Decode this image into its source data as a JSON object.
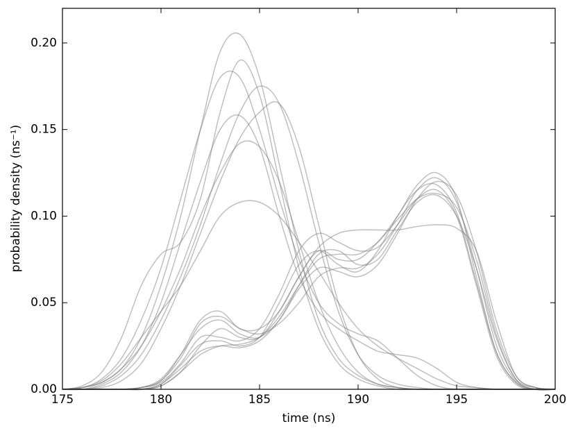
{
  "chart_data": {
    "type": "line",
    "x_label": "time (ns)",
    "y_label": "probability density (ns⁻¹)",
    "x": [
      175,
      176,
      177,
      178,
      179,
      180,
      181,
      182,
      183,
      184,
      185,
      186,
      187,
      188,
      189,
      190,
      191,
      192,
      193,
      194,
      195,
      196,
      197,
      198,
      199,
      200
    ],
    "xlim": [
      175,
      200
    ],
    "xticks": [
      175,
      180,
      185,
      190,
      195,
      200
    ],
    "ylim": [
      0,
      0.22
    ],
    "yticks": [
      {
        "value": 0,
        "label": "0.00"
      },
      0.05,
      {
        "value": 0.1,
        "label": "0.10"
      },
      0.15,
      {
        "value": 0.2,
        "label": "0.20"
      }
    ],
    "line_alpha": 0.5,
    "series": [
      {
        "color": "#808080",
        "values": [
          0,
          0.001,
          0.004,
          0.012,
          0.03,
          0.06,
          0.1,
          0.15,
          0.195,
          0.205,
          0.18,
          0.13,
          0.08,
          0.04,
          0.018,
          0.008,
          0.003,
          0.001,
          0,
          0,
          0,
          0,
          0,
          0,
          0,
          0
        ]
      },
      {
        "color": "#808080",
        "values": [
          0,
          0,
          0.002,
          0.008,
          0.02,
          0.04,
          0.065,
          0.095,
          0.13,
          0.16,
          0.175,
          0.165,
          0.13,
          0.085,
          0.045,
          0.02,
          0.008,
          0.003,
          0.001,
          0,
          0,
          0,
          0,
          0,
          0,
          0
        ]
      },
      {
        "color": "#808080",
        "values": [
          0,
          0.002,
          0.01,
          0.03,
          0.06,
          0.078,
          0.085,
          0.11,
          0.16,
          0.19,
          0.17,
          0.12,
          0.07,
          0.035,
          0.015,
          0.006,
          0.002,
          0,
          0,
          0,
          0,
          0,
          0,
          0,
          0,
          0
        ]
      },
      {
        "color": "#808080",
        "values": [
          0,
          0.001,
          0.005,
          0.015,
          0.03,
          0.045,
          0.06,
          0.08,
          0.1,
          0.108,
          0.108,
          0.1,
          0.085,
          0.068,
          0.05,
          0.035,
          0.025,
          0.018,
          0.012,
          0.006,
          0.002,
          0.001,
          0,
          0,
          0,
          0
        ]
      },
      {
        "color": "#808080",
        "values": [
          0,
          0,
          0.001,
          0.005,
          0.015,
          0.035,
          0.06,
          0.09,
          0.12,
          0.145,
          0.16,
          0.165,
          0.14,
          0.095,
          0.05,
          0.02,
          0.006,
          0.001,
          0,
          0,
          0,
          0,
          0,
          0,
          0,
          0
        ]
      },
      {
        "color": "#808080",
        "values": [
          0,
          0.001,
          0.006,
          0.018,
          0.04,
          0.07,
          0.11,
          0.15,
          0.18,
          0.18,
          0.15,
          0.11,
          0.075,
          0.05,
          0.038,
          0.032,
          0.028,
          0.018,
          0.008,
          0.002,
          0,
          0,
          0,
          0,
          0,
          0
        ]
      },
      {
        "color": "#808080",
        "values": [
          0,
          0.001,
          0.004,
          0.012,
          0.025,
          0.045,
          0.07,
          0.1,
          0.125,
          0.142,
          0.14,
          0.12,
          0.085,
          0.05,
          0.025,
          0.01,
          0.003,
          0.001,
          0,
          0,
          0,
          0,
          0,
          0,
          0,
          0
        ]
      },
      {
        "color": "#808080",
        "values": [
          0,
          0,
          0.003,
          0.01,
          0.025,
          0.05,
          0.085,
          0.12,
          0.15,
          0.158,
          0.14,
          0.1,
          0.065,
          0.045,
          0.035,
          0.028,
          0.022,
          0.02,
          0.018,
          0.012,
          0.004,
          0.001,
          0,
          0,
          0,
          0
        ]
      },
      {
        "color": "#808080",
        "values": [
          0,
          0,
          0,
          0,
          0.001,
          0.005,
          0.02,
          0.04,
          0.045,
          0.035,
          0.035,
          0.045,
          0.065,
          0.08,
          0.075,
          0.075,
          0.085,
          0.1,
          0.118,
          0.125,
          0.11,
          0.065,
          0.022,
          0.004,
          0,
          0
        ]
      },
      {
        "color": "#808080",
        "values": [
          0,
          0,
          0,
          0,
          0,
          0.003,
          0.012,
          0.022,
          0.025,
          0.024,
          0.028,
          0.04,
          0.06,
          0.078,
          0.08,
          0.072,
          0.075,
          0.092,
          0.108,
          0.112,
          0.1,
          0.07,
          0.03,
          0.006,
          0.001,
          0
        ]
      },
      {
        "color": "#808080",
        "values": [
          0,
          0,
          0,
          0,
          0.001,
          0.004,
          0.015,
          0.03,
          0.03,
          0.028,
          0.035,
          0.055,
          0.08,
          0.09,
          0.085,
          0.08,
          0.082,
          0.095,
          0.11,
          0.115,
          0.1,
          0.06,
          0.02,
          0.003,
          0,
          0
        ]
      },
      {
        "color": "#808080",
        "values": [
          0,
          0,
          0,
          0,
          0,
          0.002,
          0.01,
          0.025,
          0.035,
          0.03,
          0.03,
          0.045,
          0.065,
          0.082,
          0.09,
          0.092,
          0.092,
          0.092,
          0.094,
          0.095,
          0.093,
          0.08,
          0.04,
          0.008,
          0.001,
          0
        ]
      },
      {
        "color": "#808080",
        "values": [
          0,
          0,
          0,
          0,
          0.001,
          0.006,
          0.02,
          0.035,
          0.04,
          0.032,
          0.03,
          0.04,
          0.058,
          0.07,
          0.068,
          0.065,
          0.072,
          0.09,
          0.11,
          0.12,
          0.112,
          0.08,
          0.035,
          0.008,
          0.001,
          0
        ]
      },
      {
        "color": "#808080",
        "values": [
          0,
          0,
          0,
          0,
          0,
          0.003,
          0.014,
          0.026,
          0.028,
          0.025,
          0.03,
          0.05,
          0.072,
          0.08,
          0.072,
          0.068,
          0.08,
          0.1,
          0.115,
          0.118,
          0.102,
          0.062,
          0.022,
          0.004,
          0,
          0
        ]
      },
      {
        "color": "#808080",
        "values": [
          0,
          0,
          0,
          0,
          0,
          0.002,
          0.01,
          0.02,
          0.025,
          0.026,
          0.03,
          0.042,
          0.06,
          0.075,
          0.078,
          0.078,
          0.085,
          0.098,
          0.11,
          0.113,
          0.105,
          0.075,
          0.032,
          0.006,
          0,
          0
        ]
      },
      {
        "color": "#808080",
        "values": [
          0,
          0,
          0,
          0,
          0.001,
          0.005,
          0.018,
          0.038,
          0.042,
          0.035,
          0.032,
          0.038,
          0.05,
          0.065,
          0.07,
          0.07,
          0.078,
          0.095,
          0.115,
          0.122,
          0.108,
          0.07,
          0.026,
          0.005,
          0,
          0
        ]
      }
    ]
  }
}
